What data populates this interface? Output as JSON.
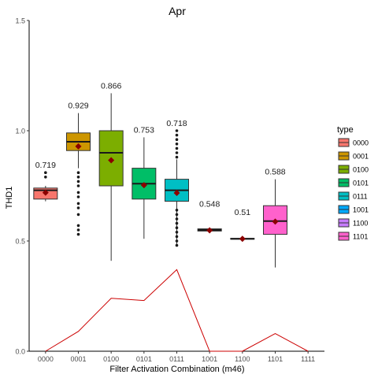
{
  "chart_data": {
    "type": "box",
    "title": "Apr",
    "xlabel": "Filter Activation Combination (m46)",
    "ylabel": "THD1",
    "ylim": [
      0,
      1.5
    ],
    "yticks": [
      "0.0",
      "0.5",
      "1.0",
      "1.5"
    ],
    "ytick_values": [
      0,
      0.5,
      1.0,
      1.5
    ],
    "categories": [
      "0000",
      "0001",
      "0100",
      "0101",
      "0111",
      "1001",
      "1100",
      "1101",
      "1111"
    ],
    "legend": {
      "title": "type",
      "position": "right",
      "entries": [
        {
          "label": "0000",
          "color": "#F8766D"
        },
        {
          "label": "0001",
          "color": "#CD9600"
        },
        {
          "label": "0100",
          "color": "#7CAE00"
        },
        {
          "label": "0101",
          "color": "#00BE67"
        },
        {
          "label": "0111",
          "color": "#00BFC4"
        },
        {
          "label": "1001",
          "color": "#00A9FF"
        },
        {
          "label": "1100",
          "color": "#C77CFF"
        },
        {
          "label": "1101",
          "color": "#FF61CC"
        }
      ]
    },
    "boxes": [
      {
        "category": "0000",
        "color": "#F8766D",
        "whisker_low": 0.68,
        "q1": 0.69,
        "median": 0.73,
        "q3": 0.74,
        "whisker_high": 0.75,
        "mean": 0.719,
        "mean_label": "0.719",
        "outliers": [
          0.79,
          0.81
        ]
      },
      {
        "category": "0001",
        "color": "#CD9600",
        "whisker_low": 0.83,
        "q1": 0.91,
        "median": 0.95,
        "q3": 0.99,
        "whisker_high": 1.08,
        "mean": 0.929,
        "mean_label": "0.929",
        "outliers": [
          0.53,
          0.55,
          0.57,
          0.62,
          0.65,
          0.67,
          0.7,
          0.72,
          0.75,
          0.77,
          0.79,
          0.81
        ]
      },
      {
        "category": "0100",
        "color": "#7CAE00",
        "whisker_low": 0.41,
        "q1": 0.75,
        "median": 0.9,
        "q3": 1.0,
        "whisker_high": 1.17,
        "mean": 0.866,
        "mean_label": "0.866",
        "outliers": []
      },
      {
        "category": "0101",
        "color": "#00BE67",
        "whisker_low": 0.51,
        "q1": 0.69,
        "median": 0.76,
        "q3": 0.83,
        "whisker_high": 0.97,
        "mean": 0.753,
        "mean_label": "0.753",
        "outliers": []
      },
      {
        "category": "0111",
        "color": "#00BFC4",
        "whisker_low": 0.48,
        "q1": 0.68,
        "median": 0.73,
        "q3": 0.78,
        "whisker_high": 0.87,
        "mean": 0.718,
        "mean_label": "0.718",
        "outliers": [
          0.48,
          0.5,
          0.52,
          0.54,
          0.56,
          0.58,
          0.6,
          0.62,
          0.64,
          0.88,
          0.9,
          0.92,
          0.94,
          0.96,
          0.98,
          1.0
        ]
      },
      {
        "category": "1001",
        "color": "#00A9FF",
        "whisker_low": 0.545,
        "q1": 0.545,
        "median": 0.55,
        "q3": 0.555,
        "whisker_high": 0.555,
        "mean": 0.548,
        "mean_label": "0.548",
        "outliers": []
      },
      {
        "category": "1100",
        "color": "#C77CFF",
        "whisker_low": 0.508,
        "q1": 0.508,
        "median": 0.51,
        "q3": 0.512,
        "whisker_high": 0.512,
        "mean": 0.51,
        "mean_label": "0.51",
        "outliers": []
      },
      {
        "category": "1101",
        "color": "#FF61CC",
        "whisker_low": 0.38,
        "q1": 0.53,
        "median": 0.59,
        "q3": 0.66,
        "whisker_high": 0.78,
        "mean": 0.588,
        "mean_label": "0.588",
        "outliers": []
      }
    ],
    "line_series": {
      "color": "#CC0000",
      "values": [
        0.0,
        0.09,
        0.24,
        0.23,
        0.37,
        0.0,
        0.0,
        0.08,
        0.0
      ]
    },
    "mean_marker_color": "#8B0000",
    "grid": false
  }
}
